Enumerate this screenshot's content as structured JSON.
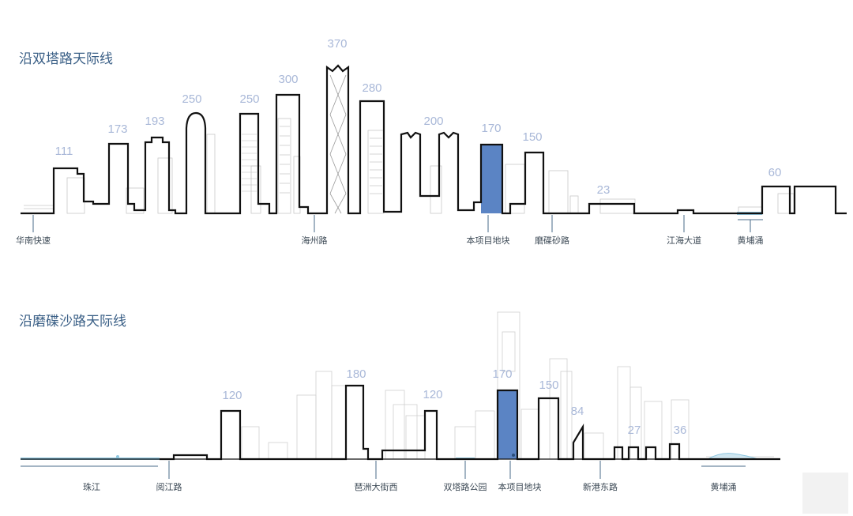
{
  "sections": [
    {
      "title": "沿双塔路天际线",
      "heights": [
        "111",
        "173",
        "193",
        "250",
        "250",
        "300",
        "370",
        "280",
        "200",
        "170",
        "150",
        "23",
        "60"
      ],
      "roads": [
        "华南快速",
        "海州路",
        "本项目地块",
        "磨碟砂路",
        "江海大道",
        "黄埔涌"
      ]
    },
    {
      "title": "沿磨碟沙路天际线",
      "heights": [
        "120",
        "180",
        "120",
        "170",
        "150",
        "84",
        "27",
        "36"
      ],
      "roads": [
        "珠江",
        "阅江路",
        "琶洲大街西",
        "双塔路公园",
        "本项目地块",
        "新港东路",
        "黄埔涌"
      ]
    }
  ],
  "colors": {
    "title": "#3a5f86",
    "height_label": "#a9b8d8",
    "highlight": "#5b84c4",
    "water": "#8fc7e0"
  },
  "icons": [
    "watermark"
  ]
}
